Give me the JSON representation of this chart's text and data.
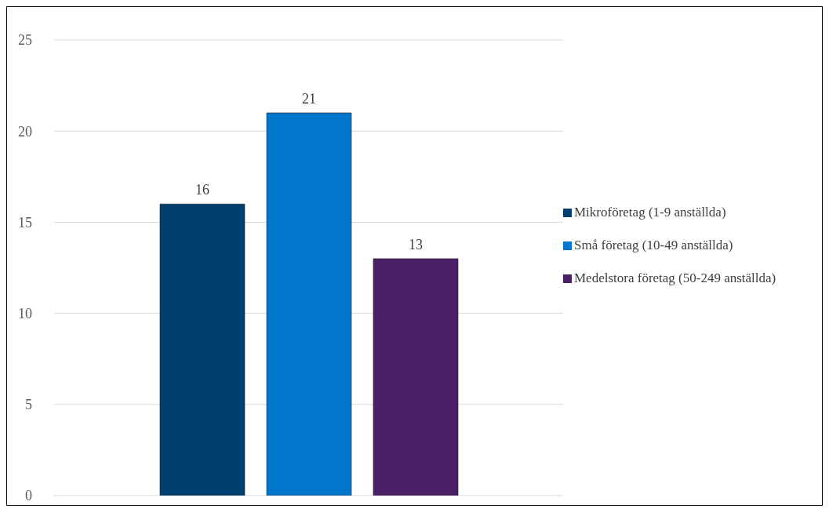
{
  "chart_data": {
    "type": "bar",
    "categories": [
      null
    ],
    "series": [
      {
        "name": "Mikroföretag (1-9 anställda)",
        "color": "#003f6e",
        "values": [
          16
        ]
      },
      {
        "name": "Små företag (10-49 anställda)",
        "color": "#0077cc",
        "values": [
          21
        ]
      },
      {
        "name": "Medelstora företag (50-249 anställda)",
        "color": "#4b1f68",
        "values": [
          13
        ]
      }
    ],
    "ylim": [
      0,
      25
    ],
    "yticks": [
      0,
      5,
      10,
      15,
      20,
      25
    ],
    "grid": "y",
    "legend": "right",
    "data_labels": true
  }
}
